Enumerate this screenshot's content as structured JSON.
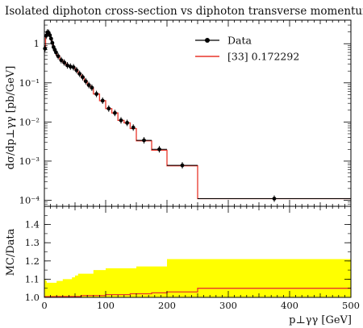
{
  "chart_data": [
    {
      "type": "line",
      "title": "Isolated diphoton cross-section vs diphoton transverse momentum",
      "ylabel": "dσ/dp⊥γγ [pb/GeV]",
      "yscale": "log",
      "ylim": [
        7e-05,
        4
      ],
      "xlim": [
        0,
        500
      ],
      "y_ticks": [
        {
          "v": 1,
          "label": "1"
        },
        {
          "v": 0.1,
          "label": "10⁻¹"
        },
        {
          "v": 0.01,
          "label": "10⁻²"
        },
        {
          "v": 0.001,
          "label": "10⁻³"
        },
        {
          "v": 0.0001,
          "label": "10⁻⁴"
        }
      ],
      "legend": {
        "placement": "top-right",
        "entries": [
          {
            "name": "Data",
            "color": "#000000",
            "marker": "circle"
          },
          {
            "name": "[33] 0.172292",
            "color": "#e8352a",
            "marker": "line"
          }
        ]
      },
      "series": [
        {
          "name": "Data",
          "color": "#000000",
          "x": [
            1,
            3,
            5,
            7,
            9,
            11,
            13,
            15,
            17,
            19,
            22.5,
            27.5,
            32.5,
            37.5,
            42.5,
            47.5,
            52.5,
            57.5,
            62.5,
            67.5,
            72.5,
            77.5,
            85,
            95,
            105,
            115,
            125,
            135,
            145,
            162.5,
            187.5,
            225,
            375
          ],
          "y": [
            0.75,
            1.6,
            1.95,
            1.9,
            1.65,
            1.35,
            1.05,
            0.82,
            0.7,
            0.6,
            0.48,
            0.38,
            0.33,
            0.28,
            0.26,
            0.25,
            0.21,
            0.17,
            0.14,
            0.11,
            0.088,
            0.075,
            0.052,
            0.035,
            0.022,
            0.017,
            0.011,
            0.0095,
            0.0072,
            0.0034,
            0.002,
            0.00078,
            0.00011
          ]
        },
        {
          "name": "[33] 0.172292",
          "color": "#e8352a",
          "type": "step",
          "edges": [
            0,
            2,
            4,
            6,
            8,
            10,
            12,
            14,
            16,
            18,
            20,
            25,
            30,
            35,
            40,
            45,
            50,
            55,
            60,
            65,
            70,
            75,
            80,
            90,
            100,
            110,
            120,
            130,
            140,
            150,
            175,
            200,
            250,
            500
          ],
          "values": [
            0.72,
            1.55,
            1.9,
            1.9,
            1.7,
            1.4,
            1.1,
            0.86,
            0.72,
            0.62,
            0.49,
            0.39,
            0.33,
            0.28,
            0.26,
            0.25,
            0.21,
            0.17,
            0.14,
            0.11,
            0.088,
            0.075,
            0.052,
            0.035,
            0.022,
            0.017,
            0.011,
            0.0095,
            0.0068,
            0.0033,
            0.0019,
            0.00076,
            0.00011
          ]
        }
      ]
    },
    {
      "type": "area",
      "ylabel": "MC/Data",
      "xlabel": "p⊥γγ [GeV]",
      "xlim": [
        0,
        500
      ],
      "ylim": [
        1.0,
        1.5
      ],
      "x_ticks": [
        0,
        100,
        200,
        300,
        400,
        500
      ],
      "y_ticks": [
        1.0,
        1.1,
        1.2,
        1.3,
        1.4
      ],
      "band": {
        "color": "#ffff00",
        "edges": [
          0,
          2,
          4,
          6,
          8,
          10,
          12,
          14,
          16,
          18,
          20,
          25,
          30,
          35,
          40,
          45,
          50,
          55,
          60,
          65,
          70,
          75,
          80,
          90,
          100,
          110,
          120,
          130,
          140,
          150,
          175,
          200,
          250,
          500
        ],
        "lower": [
          0.99,
          0.99,
          0.99,
          0.99,
          0.99,
          0.99,
          0.99,
          0.99,
          0.99,
          0.99,
          0.99,
          0.99,
          0.99,
          0.99,
          0.99,
          0.99,
          0.99,
          0.99,
          0.99,
          0.99,
          0.99,
          0.99,
          0.99,
          0.99,
          0.99,
          0.99,
          0.99,
          0.99,
          0.99,
          0.99,
          0.99,
          0.99,
          0.99
        ],
        "upper": [
          1.1,
          1.09,
          1.08,
          1.08,
          1.08,
          1.08,
          1.08,
          1.08,
          1.08,
          1.08,
          1.09,
          1.09,
          1.1,
          1.1,
          1.1,
          1.11,
          1.12,
          1.13,
          1.13,
          1.13,
          1.13,
          1.13,
          1.15,
          1.15,
          1.16,
          1.16,
          1.16,
          1.16,
          1.16,
          1.17,
          1.17,
          1.21,
          1.21
        ]
      },
      "ratio_line": {
        "color": "#e8352a",
        "edges": [
          0,
          20,
          60,
          100,
          140,
          150,
          175,
          200,
          250,
          500
        ],
        "values": [
          1.0,
          1.005,
          1.01,
          1.015,
          1.02,
          1.02,
          1.025,
          1.03,
          1.05
        ]
      }
    }
  ]
}
